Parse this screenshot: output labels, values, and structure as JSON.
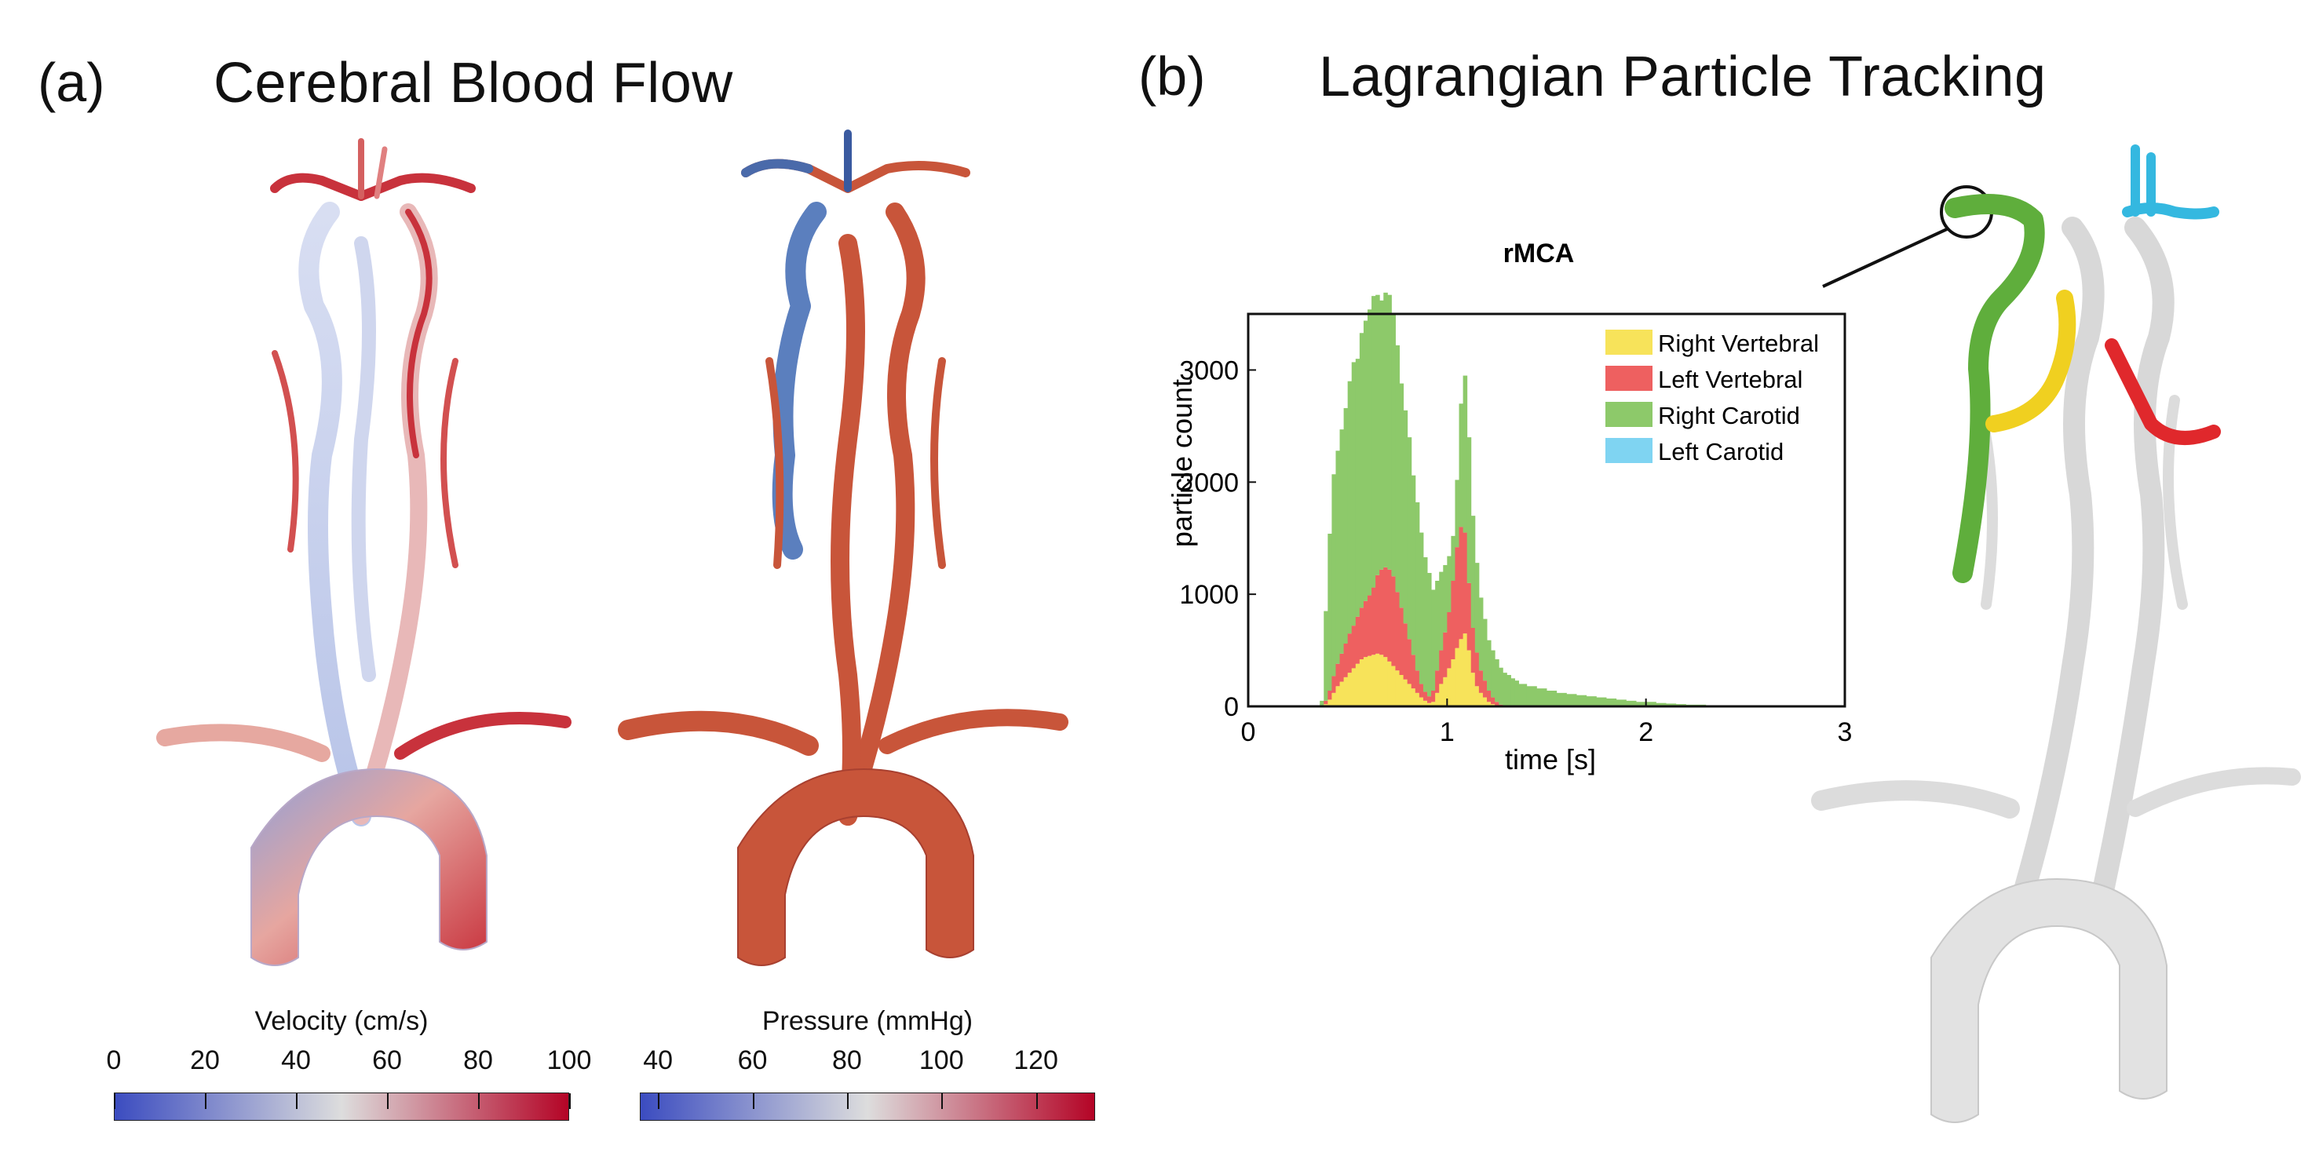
{
  "panel_a": {
    "letter": "(a)",
    "title": "Cerebral Blood Flow",
    "velocity": {
      "label": "Velocity (cm/s)",
      "ticks": [
        "0",
        "20",
        "40",
        "60",
        "80",
        "100"
      ],
      "color_low": "#3b4cc0",
      "color_mid": "#dddddd",
      "color_high": "#b40426"
    },
    "pressure": {
      "label": "Pressure (mmHg)",
      "ticks": [
        "40",
        "60",
        "80",
        "100",
        "120"
      ],
      "color_low": "#3b4cc0",
      "color_mid": "#dddddd",
      "color_high": "#b40426"
    }
  },
  "panel_b": {
    "letter": "(b)",
    "title": "Lagrangian Particle Tracking"
  },
  "chart_data": {
    "type": "bar",
    "stacked": true,
    "title": "rMCA",
    "xlabel": "time [s]",
    "ylabel": "particle count",
    "xlim": [
      0,
      3
    ],
    "ylim": [
      0,
      3500
    ],
    "xticks": [
      "0",
      "1",
      "2",
      "3"
    ],
    "yticks": [
      "0",
      "1000",
      "2000",
      "3000"
    ],
    "legend_position": "top-right",
    "series": [
      {
        "name": "Right Vertebral",
        "color": "#f7e35a"
      },
      {
        "name": "Left Vertebral",
        "color": "#ee6060"
      },
      {
        "name": "Right Carotid",
        "color": "#8dc96a"
      },
      {
        "name": "Left Carotid",
        "color": "#7fd4f2"
      }
    ],
    "bin_width": 0.02,
    "x": [
      0.36,
      0.38,
      0.4,
      0.42,
      0.44,
      0.46,
      0.48,
      0.5,
      0.52,
      0.54,
      0.56,
      0.58,
      0.6,
      0.62,
      0.64,
      0.66,
      0.68,
      0.7,
      0.72,
      0.74,
      0.76,
      0.78,
      0.8,
      0.82,
      0.84,
      0.86,
      0.88,
      0.9,
      0.92,
      0.94,
      0.96,
      0.98,
      1.0,
      1.02,
      1.04,
      1.06,
      1.08,
      1.1,
      1.12,
      1.14,
      1.16,
      1.18,
      1.2,
      1.22,
      1.24,
      1.26,
      1.28,
      1.3,
      1.32,
      1.34,
      1.36,
      1.4,
      1.45,
      1.5,
      1.55,
      1.6,
      1.65,
      1.7,
      1.75,
      1.8,
      1.85,
      1.9,
      1.95,
      2.0,
      2.05,
      2.1,
      2.15,
      2.2,
      2.3,
      2.4,
      2.5
    ],
    "right_vertebral": [
      0,
      20,
      60,
      120,
      180,
      220,
      260,
      300,
      340,
      380,
      420,
      440,
      450,
      460,
      470,
      460,
      440,
      400,
      360,
      320,
      280,
      240,
      200,
      160,
      120,
      80,
      50,
      30,
      40,
      120,
      200,
      260,
      340,
      420,
      520,
      600,
      650,
      500,
      300,
      180,
      120,
      80,
      40,
      20,
      10,
      5,
      0,
      0,
      0,
      0,
      0,
      0,
      0,
      0,
      0,
      0,
      0,
      0,
      0,
      0,
      0,
      0,
      0,
      0,
      0,
      0,
      0,
      0,
      0,
      0,
      0
    ],
    "left_vertebral": [
      0,
      30,
      80,
      150,
      200,
      250,
      300,
      350,
      380,
      420,
      460,
      500,
      540,
      600,
      700,
      760,
      800,
      820,
      800,
      700,
      600,
      500,
      400,
      300,
      200,
      120,
      80,
      60,
      100,
      200,
      300,
      400,
      500,
      700,
      900,
      1000,
      900,
      600,
      400,
      300,
      200,
      150,
      100,
      60,
      30,
      10,
      0,
      0,
      0,
      0,
      0,
      0,
      0,
      0,
      0,
      0,
      0,
      0,
      0,
      0,
      0,
      0,
      0,
      0,
      0,
      0,
      0,
      0,
      0,
      0,
      0
    ],
    "right_carotid": [
      50,
      800,
      1400,
      1800,
      1900,
      2000,
      2100,
      2250,
      2350,
      2300,
      2450,
      2500,
      2550,
      2600,
      2500,
      2400,
      2450,
      2450,
      2350,
      2200,
      2000,
      1900,
      1800,
      1600,
      1500,
      1350,
      1200,
      1100,
      900,
      800,
      700,
      600,
      500,
      400,
      600,
      1100,
      1400,
      1300,
      1000,
      800,
      650,
      550,
      450,
      420,
      380,
      330,
      300,
      280,
      250,
      230,
      200,
      180,
      160,
      140,
      120,
      110,
      100,
      90,
      80,
      70,
      60,
      50,
      40,
      40,
      30,
      25,
      20,
      15,
      10,
      5,
      2
    ],
    "left_carotid": [
      0,
      0,
      0,
      0,
      0,
      0,
      0,
      0,
      0,
      0,
      0,
      0,
      0,
      0,
      0,
      0,
      0,
      0,
      0,
      0,
      0,
      0,
      0,
      0,
      0,
      0,
      0,
      0,
      0,
      0,
      0,
      0,
      0,
      0,
      0,
      0,
      0,
      0,
      0,
      0,
      0,
      0,
      0,
      0,
      0,
      0,
      0,
      0,
      0,
      0,
      0,
      0,
      0,
      0,
      0,
      0,
      0,
      0,
      0,
      0,
      0,
      0,
      0,
      0,
      0,
      0,
      0,
      0,
      0,
      0,
      0
    ]
  },
  "vessel_colors": {
    "velocity_base": "#c9d2ec",
    "velocity_red": "#c8323c",
    "pressure_base": "#c8553a",
    "pressure_blue": "#5b7fbe",
    "tracking_gray": "#d6d6d6",
    "tracking_green": "#5fae3c",
    "tracking_yellow": "#f0d020",
    "tracking_red": "#e0282c",
    "tracking_cyan": "#34b8e0"
  }
}
